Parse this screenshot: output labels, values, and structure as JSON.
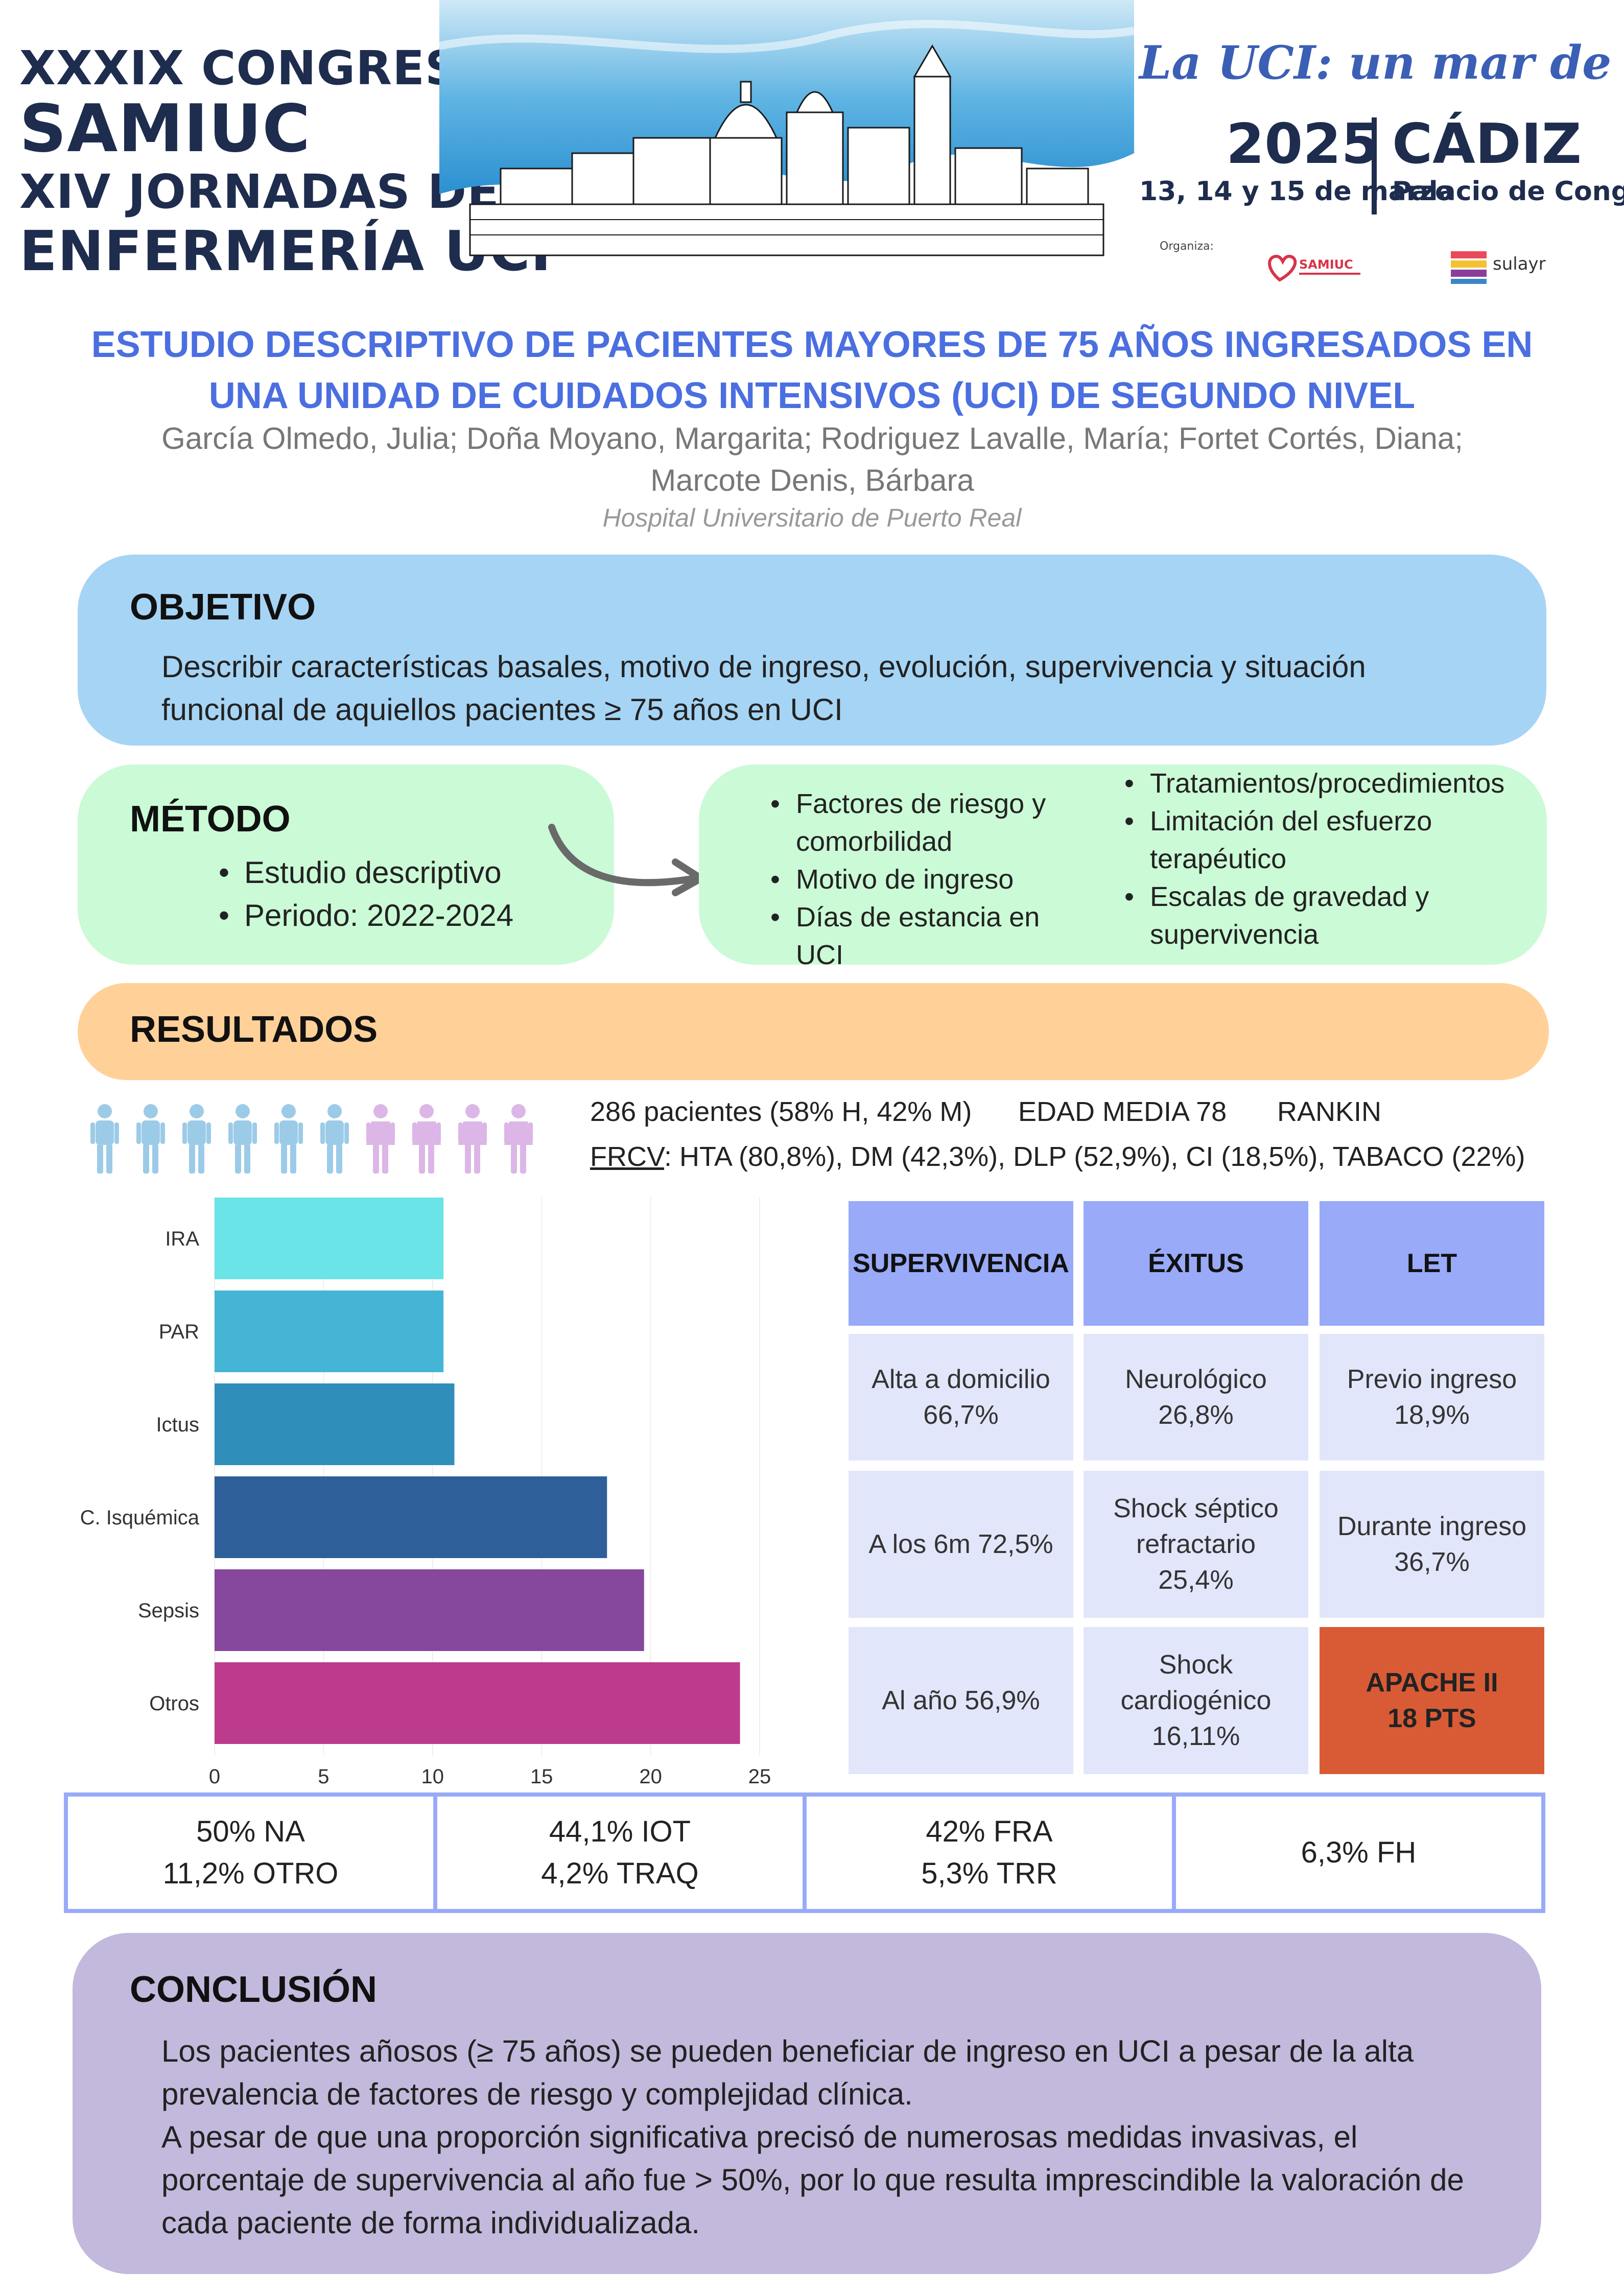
{
  "header": {
    "congress_lines": [
      "XXXIX CONGRESO",
      "SAMIUC",
      "XIV JORNADAS DE",
      "ENFERMERÍA UCI"
    ],
    "motto": "La UCI: un mar de vida",
    "year": "2025",
    "city": "CÁDIZ",
    "dates": "13, 14 y 15 de marzo",
    "venue": "Palacio de Congresos",
    "organiza": "Organiza:",
    "logo1": "SAMIUC",
    "logo2": "sulayr"
  },
  "title": {
    "line1": "ESTUDIO DESCRIPTIVO DE PACIENTES MAYORES DE 75 AÑOS INGRESADOS EN",
    "line2": "UNA UNIDAD DE CUIDADOS INTENSIVOS (UCI) DE SEGUNDO NIVEL"
  },
  "authors": {
    "line1": "García Olmedo, Julia; Doña Moyano, Margarita; Rodriguez Lavalle, María; Fortet Cortés, Diana;",
    "line2": "Marcote Denis, Bárbara"
  },
  "hospital": "Hospital Universitario de Puerto Real",
  "objetivo": {
    "heading": "OBJETIVO",
    "line1": "Describir características basales, motivo de ingreso, evolución, supervivencia y situación",
    "line2": "funcional de aquiellos pacientes ≥ 75 años en UCI"
  },
  "metodo": {
    "heading": "MÉTODO",
    "items": [
      "Estudio descriptivo",
      "Periodo: 2022-2024"
    ],
    "vars_left": [
      "Factores de riesgo y comorbilidad",
      "Motivo de ingreso",
      "Días de estancia en UCI"
    ],
    "vars_right": [
      "Tratamientos/procedimientos",
      "Limitación del esfuerzo terapéutico",
      "Escalas de gravedad y supervivencia"
    ]
  },
  "resultados": {
    "heading": "RESULTADOS",
    "patients": "286 pacientes (58% H, 42% M)",
    "age": "EDAD MEDIA  78",
    "rankin": "RANKIN",
    "frcv_label": "FRCV",
    "frcv_values": ": HTA (80,8%), DM (42,3%), DLP (52,9%), CI (18,5%), TABACO (22%)",
    "people_colors": {
      "male": "#9ccbe8",
      "female": "#dcb6e6"
    }
  },
  "chart_data": {
    "type": "bar",
    "orientation": "horizontal",
    "categories": [
      "IRA",
      "PAR",
      "Ictus",
      "C. Isquémica",
      "Sepsis",
      "Otros"
    ],
    "values": [
      10.5,
      10.5,
      11,
      18,
      19.7,
      24.1
    ],
    "colors": [
      "#6ae4e6",
      "#45b5d6",
      "#2f8fba",
      "#2e5f98",
      "#86489c",
      "#bc3b8c"
    ],
    "xlim": [
      0,
      25
    ],
    "xticks": [
      "0",
      "5",
      "10",
      "15",
      "20",
      "25"
    ],
    "grid": true
  },
  "table": {
    "headers": [
      "SUPERVIVENCIA",
      "ÉXITUS",
      "LET"
    ],
    "rows": [
      [
        "Alta a domicilio\n66,7%",
        "Neurológico\n26,8%",
        "Previo ingreso\n18,9%"
      ],
      [
        "A los 6m 72,5%",
        "Shock séptico\nrefractario\n25,4%",
        "Durante ingreso\n36,7%"
      ],
      [
        "Al año 56,9%",
        "Shock\ncardiogénico\n16,11%",
        "APACHE II\n18 PTS"
      ]
    ]
  },
  "stats": [
    "50% NA\n11,2% OTRO",
    "44,1% IOT\n4,2% TRAQ",
    "42% FRA\n5,3% TRR",
    "6,3% FH"
  ],
  "conclusion": {
    "heading": "CONCLUSIÓN",
    "p1": "Los pacientes añosos (≥ 75 años) se pueden beneficiar de ingreso en UCI a pesar de la alta prevalencia de factores de riesgo y complejidad clínica.",
    "p2": "A pesar de que una proporción significativa precisó de numerosas medidas invasivas, el porcentaje de supervivencia al año fue > 50%, por lo que resulta imprescindible la valoración de cada paciente de forma individualizada."
  },
  "colors": {
    "title": "#4b6fe0",
    "objetivo_bg": "#a6d4f4",
    "metodo_bg": "#cbfad6",
    "resultados_bg": "#ffd199",
    "conclusion_bg": "#c3b9dc",
    "table_header": "#98aaf8",
    "table_body": "#e2e6fb",
    "apache": "#d85b36"
  }
}
